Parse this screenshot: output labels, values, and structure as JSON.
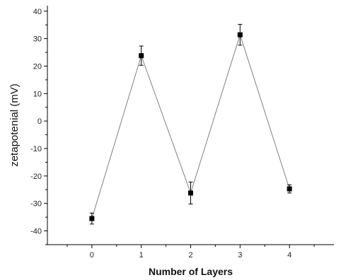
{
  "chart_data": {
    "type": "line",
    "title": "",
    "xlabel": "Number of Layers",
    "ylabel": "zetapotenial (mV)",
    "xlim": [
      -0.9,
      4.9
    ],
    "ylim": [
      -45,
      42
    ],
    "x_ticks": [
      0,
      1,
      2,
      3,
      4
    ],
    "x_tick_labels": [
      "0",
      "1",
      "2",
      "3",
      "4"
    ],
    "y_ticks": [
      -40,
      -30,
      -20,
      -10,
      0,
      10,
      20,
      30,
      40
    ],
    "y_tick_labels": [
      "-40",
      "-30",
      "-20",
      "-10",
      "0",
      "10",
      "20",
      "30",
      "40"
    ],
    "grid": false,
    "legend": "none",
    "marker": "square",
    "line_color": "#808080",
    "marker_color": "#000000",
    "series": [
      {
        "x": [
          0,
          1,
          2,
          3,
          4
        ],
        "y": [
          -35.5,
          23.8,
          -26.2,
          31.4,
          -24.7
        ],
        "error": [
          2.0,
          3.5,
          4.0,
          3.8,
          1.5
        ]
      }
    ]
  }
}
